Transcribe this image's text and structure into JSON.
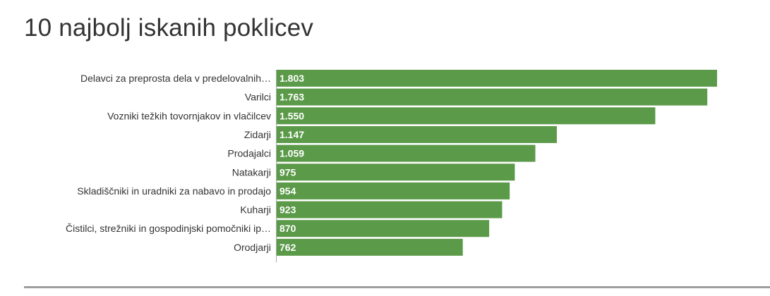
{
  "title": "10 najbolj iskanih poklicev",
  "colors": {
    "bar": "#5b9a49",
    "axis": "#aaaaaa",
    "text": "#333333",
    "divider": "#9e9e9e"
  },
  "chart_data": {
    "type": "bar",
    "orientation": "horizontal",
    "title": "10 najbolj iskanih poklicev",
    "categories": [
      "Delavci za preprosta dela v predelovalnih…",
      "Varilci",
      "Vozniki težkih tovornjakov in vlačilcev",
      "Zidarji",
      "Prodajalci",
      "Natakarji",
      "Skladiščniki in uradniki za nabavo in prodajo",
      "Kuharji",
      "Čistilci, strežniki in gospodinjski pomočniki ip…",
      "Orodjarji"
    ],
    "values": [
      1803,
      1763,
      1550,
      1147,
      1059,
      975,
      954,
      923,
      870,
      762
    ],
    "value_labels": [
      "1.803",
      "1.763",
      "1.550",
      "1.147",
      "1.059",
      "975",
      "954",
      "923",
      "870",
      "762"
    ],
    "xlim": [
      0,
      1803
    ],
    "grid": false,
    "legend": "none"
  }
}
